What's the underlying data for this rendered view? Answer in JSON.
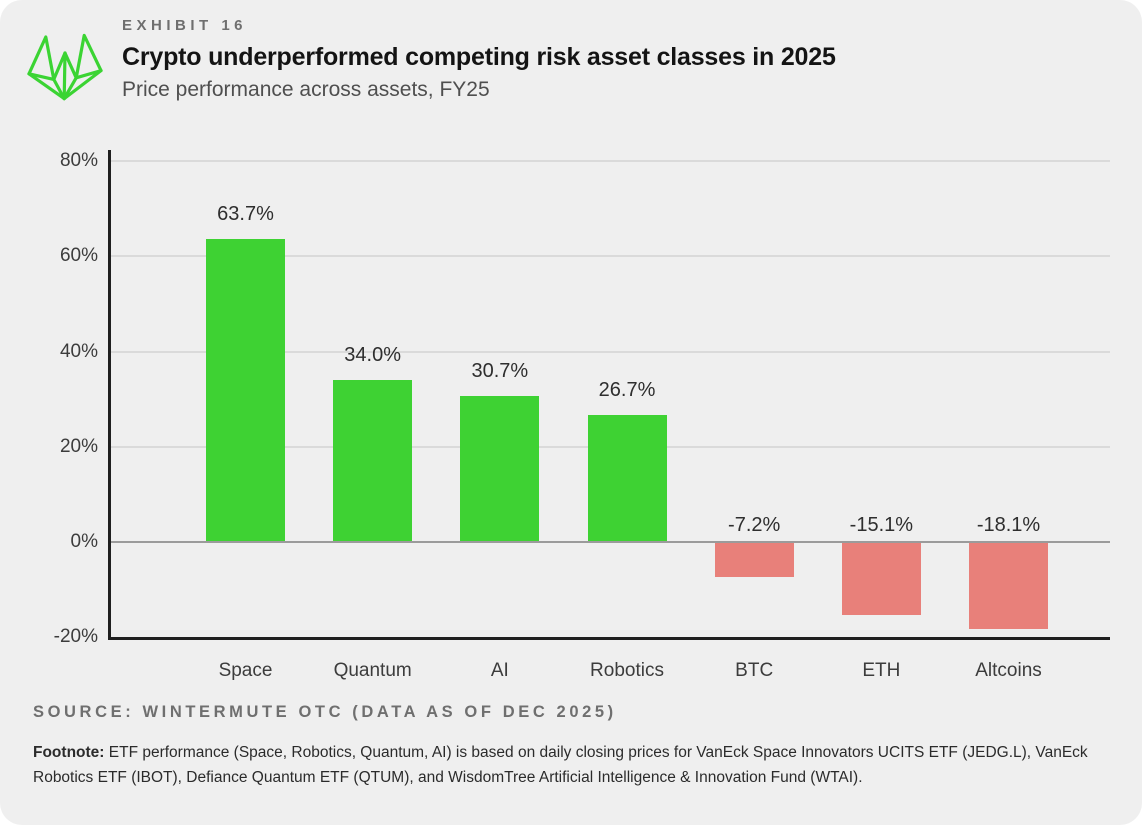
{
  "header": {
    "exhibit_label": "EXHIBIT 16",
    "title": "Crypto underperformed competing risk asset classes in 2025",
    "subtitle": "Price performance across assets, FY25"
  },
  "chart_data": {
    "type": "bar",
    "title": "Crypto underperformed competing risk asset classes in 2025",
    "subtitle": "Price performance across assets, FY25",
    "categories": [
      "Space",
      "Quantum",
      "AI",
      "Robotics",
      "BTC",
      "ETH",
      "Altcoins"
    ],
    "values": [
      63.7,
      34.0,
      30.7,
      26.7,
      -7.2,
      -15.1,
      -18.1
    ],
    "value_labels": [
      "63.7%",
      "34.0%",
      "30.7%",
      "26.7%",
      "-7.2%",
      "-15.1%",
      "-18.1%"
    ],
    "y_ticks": [
      80,
      60,
      40,
      20,
      0,
      -20
    ],
    "y_tick_labels": [
      "80%",
      "60%",
      "40%",
      "20%",
      "0%",
      "-20%"
    ],
    "ylim": [
      -20,
      82
    ],
    "xlabel": "",
    "ylabel": "",
    "grid": "horizontal",
    "legend_position": "none",
    "positive_color": "#3ed233",
    "negative_color": "#e8807a"
  },
  "footer": {
    "source": "SOURCE: WINTERMUTE OTC (DATA AS OF DEC 2025)",
    "footnote_label": "Footnote:",
    "footnote_text": " ETF performance (Space, Robotics, Quantum, AI) is based on daily closing prices for VanEck Space Innovators UCITS ETF (JEDG.L), VanEck Robotics ETF (IBOT), Defiance Quantum ETF (QTUM), and WisdomTree Artificial Intelligence & Innovation Fund (WTAI)."
  },
  "colors": {
    "card_background": "#efefef",
    "axis": "#1f1f1f",
    "gridline": "#dadada",
    "zero_line": "#9b9b9b"
  }
}
